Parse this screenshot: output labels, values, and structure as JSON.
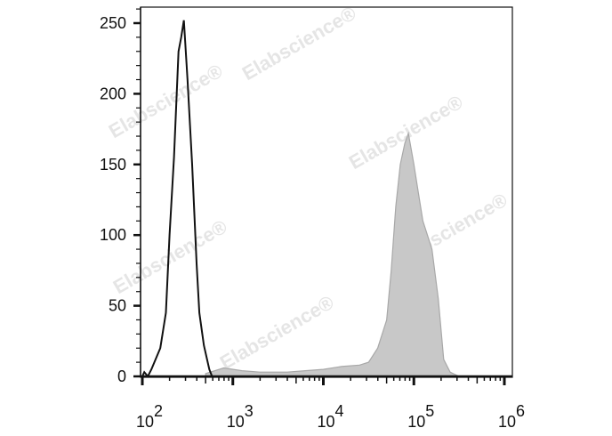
{
  "chart_data": {
    "type": "area",
    "title": "",
    "xlabel": "",
    "ylabel": "",
    "x_scale": "log",
    "xlim": [
      100,
      1000000
    ],
    "ylim": [
      0,
      262
    ],
    "y_ticks": [
      0,
      50,
      100,
      150,
      200,
      250
    ],
    "x_ticks": [
      {
        "base": "10",
        "exp": "2",
        "value": 100
      },
      {
        "base": "10",
        "exp": "3",
        "value": 1000
      },
      {
        "base": "10",
        "exp": "4",
        "value": 10000
      },
      {
        "base": "10",
        "exp": "5",
        "value": 100000
      },
      {
        "base": "10",
        "exp": "6",
        "value": 1000000
      }
    ],
    "grid": false,
    "watermark": "Elabscience®",
    "series": [
      {
        "style": "filled",
        "color": "#c8c8c8",
        "edge_color": "#a8a8a8",
        "x": [
          501,
          794,
          1259,
          1995,
          3981,
          6310,
          10000,
          15849,
          25119,
          31623,
          39811,
          50119,
          56234,
          63096,
          70795,
          79433,
          87096,
          100000,
          112202,
          125893,
          158489,
          186209,
          213796,
          251189,
          316228
        ],
        "y": [
          2,
          6,
          4,
          3,
          3,
          4,
          5,
          7,
          8,
          10,
          20,
          40,
          75,
          120,
          150,
          165,
          172,
          150,
          130,
          110,
          90,
          55,
          12,
          3,
          0
        ]
      },
      {
        "style": "line",
        "color": "#111111",
        "x": [
          100,
          105,
          115,
          126,
          158,
          182,
          200,
          224,
          251,
          269,
          288,
          316,
          355,
          398,
          427,
          479,
          550,
          589
        ],
        "y": [
          0,
          3,
          0,
          5,
          20,
          45,
          100,
          155,
          230,
          240,
          252,
          210,
          150,
          80,
          45,
          22,
          5,
          0
        ]
      }
    ]
  }
}
